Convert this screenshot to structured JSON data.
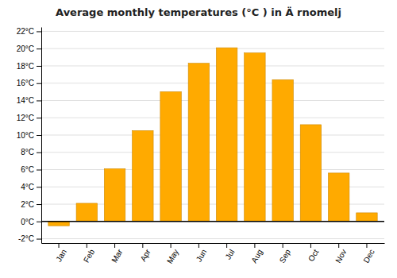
{
  "chart_data": {
    "type": "bar",
    "title": "Average monthly temperatures (°C ) in Ä rnomelj",
    "categories": [
      "Jan",
      "Feb",
      "Mar",
      "Apr",
      "May",
      "Jun",
      "Jul",
      "Aug",
      "Sep",
      "Oct",
      "Nov",
      "Dec"
    ],
    "values": [
      -0.5,
      2.1,
      6.1,
      10.5,
      15.0,
      18.3,
      20.1,
      19.5,
      16.4,
      11.2,
      5.6,
      1.0
    ],
    "color": "#FFAA00",
    "ylim": [
      -2.5,
      22.5
    ],
    "yticks": [
      {
        "value": -2,
        "label": "-2°C"
      },
      {
        "value": 0,
        "label": "0°C"
      },
      {
        "value": 2,
        "label": "2°C"
      },
      {
        "value": 4,
        "label": "4°C"
      },
      {
        "value": 6,
        "label": "6°C"
      },
      {
        "value": 8,
        "label": "8°C"
      },
      {
        "value": 10,
        "label": "10°C"
      },
      {
        "value": 12,
        "label": "12°C"
      },
      {
        "value": 14,
        "label": "14°C"
      },
      {
        "value": 16,
        "label": "16°C"
      },
      {
        "value": 18,
        "label": "18°C"
      },
      {
        "value": 20,
        "label": "20°C"
      },
      {
        "value": 22,
        "label": "22°C"
      }
    ],
    "grid": true
  }
}
